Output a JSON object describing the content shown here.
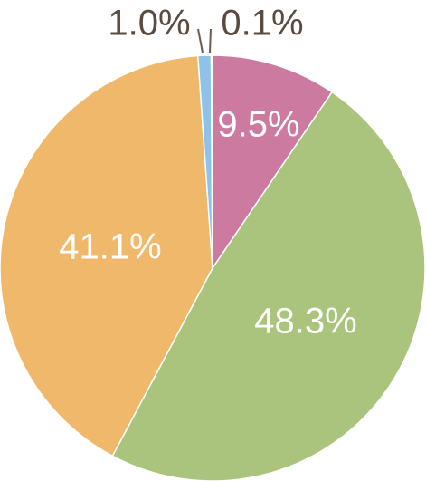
{
  "chart_data": {
    "type": "pie",
    "values": [
      9.5,
      48.3,
      41.1,
      1.0,
      0.1
    ],
    "value_labels": [
      "9.5%",
      "48.3%",
      "41.1%",
      "1.0%",
      "0.1%"
    ],
    "colors": [
      "#cd7aa1",
      "#abc47d",
      "#f0b86b",
      "#8ec2e8",
      "#ece07a"
    ]
  }
}
